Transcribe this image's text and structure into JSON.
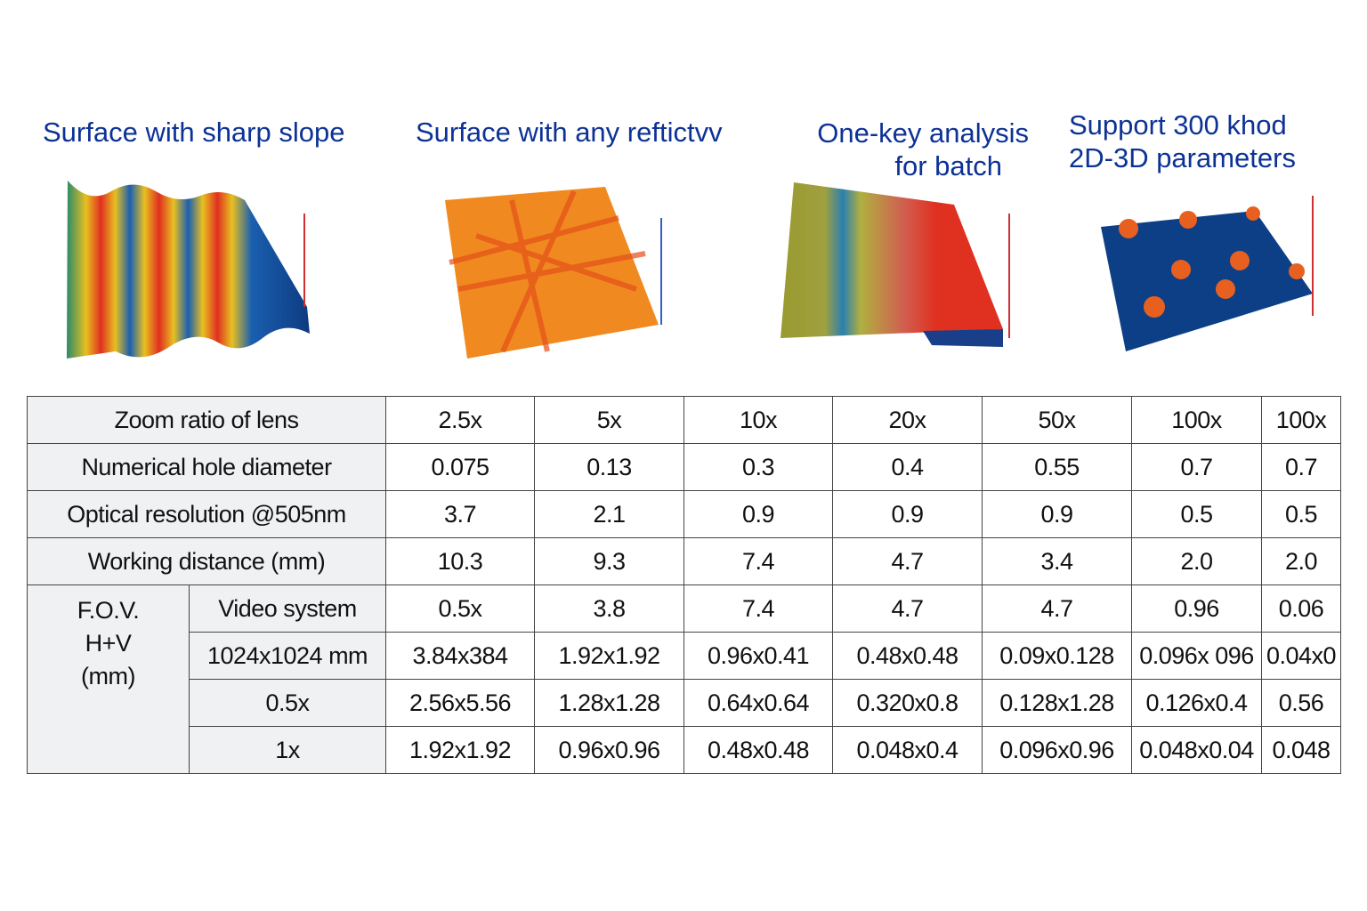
{
  "features": [
    {
      "title": "Surface with sharp slope"
    },
    {
      "title": "Surface with any reftictvv"
    },
    {
      "title_line1": "One-key analysis",
      "title_line2": "for batch"
    },
    {
      "title_line1": "Support 300  khod",
      "title_line2": "2D-3D parameters"
    }
  ],
  "table": {
    "rows": [
      {
        "label": "Zoom ratio of lens",
        "values": [
          "2.5x",
          "5x",
          "10x",
          "20x",
          "50x",
          "100x",
          "100x"
        ]
      },
      {
        "label": "Numerical hole diameter",
        "values": [
          "0.075",
          "0.13",
          "0.3",
          "0.4",
          "0.55",
          "0.7",
          "0.7"
        ]
      },
      {
        "label": "Optical resolution @505nm",
        "values": [
          "3.7",
          "2.1",
          "0.9",
          "0.9",
          "0.9",
          "0.5",
          "0.5"
        ]
      },
      {
        "label": "Working distance (mm)",
        "values": [
          "10.3",
          "9.3",
          "7.4",
          "4.7",
          "3.4",
          "2.0",
          "2.0"
        ]
      }
    ],
    "fov": {
      "label_line1": "F.O.V.",
      "label_line2": "H+V",
      "label_line3": "(mm)",
      "rows": [
        {
          "label": "Video system",
          "values": [
            "0.5x",
            "3.8",
            "7.4",
            "4.7",
            "4.7",
            "0.96",
            "0.06"
          ]
        },
        {
          "label": "1024x1024 mm",
          "values": [
            "3.84x384",
            "1.92x1.92",
            "0.96x0.41",
            "0.48x0.48",
            "0.09x0.128",
            "0.096x 096",
            "0.04x0"
          ]
        },
        {
          "label": "0.5x",
          "values": [
            "2.56x5.56",
            "1.28x1.28",
            "0.64x0.64",
            "0.320x0.8",
            "0.128x1.28",
            "0.126x0.4",
            "0.56"
          ]
        },
        {
          "label": "1x",
          "values": [
            "1.92x1.92",
            "0.96x0.96",
            "0.48x0.48",
            "0.048x0.4",
            "0.096x0.96",
            "0.048x0.04",
            "0.048"
          ]
        }
      ]
    }
  }
}
